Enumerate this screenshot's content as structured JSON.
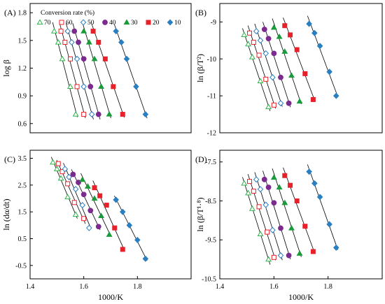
{
  "legend": {
    "title": "Conversion rate (%)",
    "items": [
      {
        "label": "70",
        "marker": "triangle",
        "filled": false,
        "color": "#2db34a"
      },
      {
        "label": "60",
        "marker": "square",
        "filled": false,
        "color": "#e8202a"
      },
      {
        "label": "50",
        "marker": "diamond",
        "filled": false,
        "color": "#2a7fc1"
      },
      {
        "label": "40",
        "marker": "circle",
        "filled": true,
        "color": "#7b2a8e"
      },
      {
        "label": "30",
        "marker": "triangle",
        "filled": true,
        "color": "#1a9a3a"
      },
      {
        "label": "20",
        "marker": "square",
        "filled": true,
        "color": "#e8202a"
      },
      {
        "label": "10",
        "marker": "diamond",
        "filled": true,
        "color": "#2a7fc1"
      }
    ]
  },
  "chart_data": [
    {
      "panel": "(A)",
      "type": "scatter",
      "xlabel": "",
      "ylabel": "log β",
      "xlim": [
        1.4,
        2.0
      ],
      "ylim": [
        0.5,
        1.9
      ],
      "yticks": [
        "1.8",
        "1.5",
        "1.2",
        "0.9",
        "0.6"
      ],
      "ytick_values": [
        1.8,
        1.5,
        1.2,
        0.9,
        0.6
      ],
      "xticks": [],
      "trendlines": true,
      "series": [
        {
          "name": "70",
          "x": [
            1.49,
            1.505,
            1.52,
            1.55,
            1.57
          ],
          "y": [
            1.6,
            1.48,
            1.3,
            1.0,
            0.7
          ]
        },
        {
          "name": "60",
          "x": [
            1.515,
            1.53,
            1.55,
            1.575,
            1.6
          ],
          "y": [
            1.6,
            1.48,
            1.3,
            1.0,
            0.7
          ]
        },
        {
          "name": "50",
          "x": [
            1.54,
            1.555,
            1.575,
            1.6,
            1.63
          ],
          "y": [
            1.6,
            1.48,
            1.3,
            1.0,
            0.7
          ]
        },
        {
          "name": "40",
          "x": [
            1.565,
            1.58,
            1.6,
            1.625,
            1.655
          ],
          "y": [
            1.6,
            1.48,
            1.3,
            1.0,
            0.7
          ]
        },
        {
          "name": "30",
          "x": [
            1.6,
            1.62,
            1.64,
            1.665,
            1.695
          ],
          "y": [
            1.6,
            1.48,
            1.3,
            1.0,
            0.7
          ]
        },
        {
          "name": "20",
          "x": [
            1.635,
            1.655,
            1.68,
            1.71,
            1.745
          ],
          "y": [
            1.6,
            1.48,
            1.3,
            1.0,
            0.7
          ]
        },
        {
          "name": "10",
          "x": [
            1.72,
            1.74,
            1.76,
            1.795,
            1.83
          ],
          "y": [
            1.6,
            1.48,
            1.3,
            1.0,
            0.7
          ]
        }
      ]
    },
    {
      "panel": "(B)",
      "type": "scatter",
      "xlabel": "",
      "ylabel": "ln (β/T²)",
      "xlim": [
        1.4,
        2.0
      ],
      "ylim": [
        -12,
        -8.5
      ],
      "yticks": [
        "-9",
        "-10",
        "-11",
        "-12"
      ],
      "ytick_values": [
        -9,
        -10,
        -11,
        -12
      ],
      "xticks": [],
      "trendlines": true,
      "series": [
        {
          "name": "70",
          "x": [
            1.49,
            1.505,
            1.52,
            1.55,
            1.58
          ],
          "y": [
            -9.35,
            -9.6,
            -9.95,
            -10.6,
            -11.3
          ]
        },
        {
          "name": "60",
          "x": [
            1.51,
            1.525,
            1.545,
            1.57,
            1.6
          ],
          "y": [
            -9.3,
            -9.55,
            -9.9,
            -10.55,
            -11.25
          ]
        },
        {
          "name": "50",
          "x": [
            1.535,
            1.55,
            1.57,
            1.595,
            1.625
          ],
          "y": [
            -9.25,
            -9.5,
            -9.85,
            -10.5,
            -11.2
          ]
        },
        {
          "name": "40",
          "x": [
            1.565,
            1.58,
            1.6,
            1.625,
            1.655
          ],
          "y": [
            -9.2,
            -9.45,
            -9.85,
            -10.5,
            -11.2
          ]
        },
        {
          "name": "30",
          "x": [
            1.6,
            1.62,
            1.64,
            1.665,
            1.695
          ],
          "y": [
            -9.15,
            -9.4,
            -9.8,
            -10.45,
            -11.15
          ]
        },
        {
          "name": "20",
          "x": [
            1.64,
            1.66,
            1.685,
            1.715,
            1.745
          ],
          "y": [
            -9.1,
            -9.35,
            -9.75,
            -10.4,
            -11.1
          ]
        },
        {
          "name": "10",
          "x": [
            1.73,
            1.75,
            1.77,
            1.805,
            1.83
          ],
          "y": [
            -9.05,
            -9.3,
            -9.65,
            -10.35,
            -11.0
          ]
        }
      ]
    },
    {
      "panel": "(C)",
      "type": "scatter",
      "xlabel": "1000/K",
      "ylabel": "ln (dα/dt)",
      "xlim": [
        1.4,
        2.0
      ],
      "ylim": [
        -1.0,
        3.8
      ],
      "yticks": [
        "3.5",
        "2.5",
        "1.5",
        "0.5",
        "-0.5"
      ],
      "ytick_values": [
        3.5,
        2.5,
        1.5,
        0.5,
        -0.5
      ],
      "xticks": [
        "1.4",
        "1.6",
        "1.8"
      ],
      "xtick_values": [
        1.4,
        1.6,
        1.8
      ],
      "trendlines": true,
      "series": [
        {
          "name": "70",
          "x": [
            1.485,
            1.5,
            1.515,
            1.54,
            1.57
          ],
          "y": [
            3.35,
            3.1,
            2.75,
            2.05,
            1.4
          ]
        },
        {
          "name": "60",
          "x": [
            1.505,
            1.52,
            1.54,
            1.565,
            1.6
          ],
          "y": [
            3.3,
            3.0,
            2.55,
            1.85,
            1.25
          ]
        },
        {
          "name": "50",
          "x": [
            1.53,
            1.545,
            1.57,
            1.595,
            1.62
          ],
          "y": [
            3.1,
            2.8,
            2.35,
            1.75,
            0.9
          ]
        },
        {
          "name": "40",
          "x": [
            1.56,
            1.58,
            1.6,
            1.625,
            1.655
          ],
          "y": [
            2.9,
            2.6,
            2.15,
            1.55,
            0.95
          ]
        },
        {
          "name": "30",
          "x": [
            1.595,
            1.615,
            1.64,
            1.665,
            1.695
          ],
          "y": [
            2.7,
            2.45,
            2.0,
            1.35,
            0.65
          ]
        },
        {
          "name": "20",
          "x": [
            1.64,
            1.66,
            1.685,
            1.715,
            1.745
          ],
          "y": [
            2.4,
            2.1,
            1.75,
            0.9,
            0.1
          ]
        },
        {
          "name": "10",
          "x": [
            1.72,
            1.745,
            1.77,
            1.8,
            1.83
          ],
          "y": [
            1.95,
            1.5,
            1.0,
            0.45,
            -0.25
          ]
        }
      ]
    },
    {
      "panel": "(D)",
      "type": "scatter",
      "xlabel": "1000/K",
      "ylabel": "ln (β/T¹·⁸)",
      "xlim": [
        1.4,
        2.0
      ],
      "ylim": [
        -10.5,
        -7.2
      ],
      "yticks": [
        "-7.5",
        "-8.5",
        "-9.5",
        "-10.5"
      ],
      "ytick_values": [
        -7.5,
        -8.5,
        -9.5,
        -10.5
      ],
      "xticks": [
        "1.4",
        "1.6",
        "1.8"
      ],
      "xtick_values": [
        1.4,
        1.6,
        1.8
      ],
      "trendlines": true,
      "series": [
        {
          "name": "70",
          "x": [
            1.49,
            1.505,
            1.52,
            1.55,
            1.58
          ],
          "y": [
            -8.05,
            -8.3,
            -8.7,
            -9.35,
            -10.0
          ]
        },
        {
          "name": "60",
          "x": [
            1.51,
            1.525,
            1.545,
            1.575,
            1.6
          ],
          "y": [
            -8.0,
            -8.25,
            -8.65,
            -9.3,
            -9.95
          ]
        },
        {
          "name": "50",
          "x": [
            1.535,
            1.55,
            1.57,
            1.595,
            1.625
          ],
          "y": [
            -7.95,
            -8.2,
            -8.6,
            -9.25,
            -9.9
          ]
        },
        {
          "name": "40",
          "x": [
            1.565,
            1.58,
            1.6,
            1.625,
            1.655
          ],
          "y": [
            -7.95,
            -8.15,
            -8.55,
            -9.2,
            -9.9
          ]
        },
        {
          "name": "30",
          "x": [
            1.6,
            1.62,
            1.64,
            1.665,
            1.695
          ],
          "y": [
            -7.9,
            -8.15,
            -8.55,
            -9.2,
            -9.85
          ]
        },
        {
          "name": "20",
          "x": [
            1.64,
            1.66,
            1.685,
            1.715,
            1.745
          ],
          "y": [
            -7.85,
            -8.1,
            -8.5,
            -9.15,
            -9.8
          ]
        },
        {
          "name": "10",
          "x": [
            1.73,
            1.75,
            1.77,
            1.805,
            1.83
          ],
          "y": [
            -7.75,
            -8.05,
            -8.4,
            -9.1,
            -9.7
          ]
        }
      ]
    }
  ]
}
